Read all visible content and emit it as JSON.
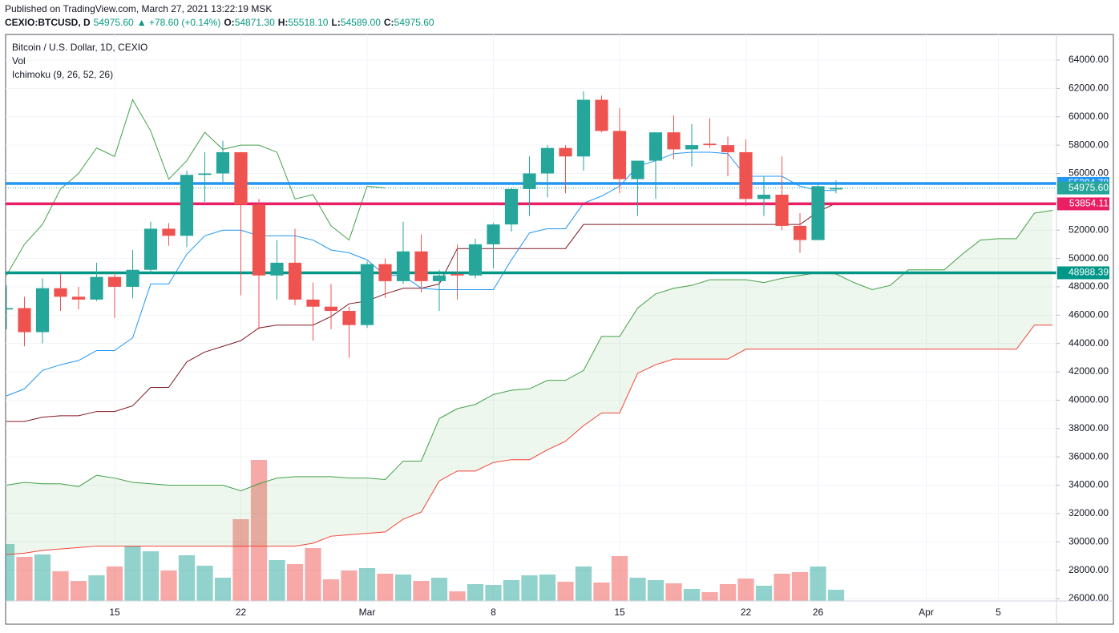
{
  "header": {
    "published": "Published on TradingView.com, March 27, 2021 13:22:19 MSK",
    "symbol": "CEXIO:BTCUSD, D",
    "last": "54975.60",
    "change": "▲ +78.60 (+0.14%)",
    "ohlc": [
      {
        "label": "O:",
        "value": "54871.30"
      },
      {
        "label": "H:",
        "value": "55518.10"
      },
      {
        "label": "L:",
        "value": "54589.00"
      },
      {
        "label": "C:",
        "value": "54975.60"
      }
    ]
  },
  "chart_data": {
    "type": "candlestick",
    "title": "Bitcoin / U.S. Dollar, 1D, CEXIO",
    "categories": [
      null,
      null,
      null,
      null,
      null,
      null,
      "15",
      null,
      null,
      null,
      null,
      null,
      null,
      "22",
      null,
      null,
      null,
      null,
      null,
      null,
      "Mar",
      null,
      null,
      null,
      null,
      null,
      null,
      "8",
      null,
      null,
      null,
      null,
      null,
      null,
      "15",
      null,
      null,
      null,
      null,
      null,
      null,
      "22",
      null,
      null,
      null,
      "26",
      null,
      null,
      null,
      null,
      null,
      "Apr",
      null,
      null,
      null,
      "5",
      null,
      null,
      null
    ],
    "open": [
      46400,
      46500,
      44800,
      47900,
      47300,
      47100,
      48700,
      48000,
      49200,
      52100,
      51600,
      55900,
      56000,
      57500,
      53800,
      48800,
      49700,
      47100,
      46600,
      46300,
      45300,
      49600,
      48400,
      50500,
      48400,
      48900,
      48800,
      51000,
      52400,
      54900,
      56000,
      57800,
      57200,
      61200,
      59000,
      55600,
      56900,
      58900,
      57700,
      58100,
      58000,
      57500,
      54200,
      54500,
      52300,
      51300,
      54871.3,
      null,
      null,
      null,
      null,
      null,
      null,
      null,
      null,
      null,
      null,
      null,
      null
    ],
    "high": [
      48100,
      47300,
      48600,
      48900,
      48000,
      49700,
      49000,
      50600,
      52600,
      52500,
      56200,
      57500,
      58300,
      57500,
      54200,
      51300,
      52100,
      48300,
      48200,
      46600,
      49800,
      50000,
      52600,
      51700,
      49200,
      51000,
      51400,
      52500,
      55000,
      57200,
      58000,
      58000,
      61800,
      61500,
      60600,
      56900,
      58900,
      60100,
      59500,
      59900,
      58600,
      58400,
      55800,
      57200,
      53200,
      55200,
      55518.1,
      null,
      null,
      null,
      null,
      null,
      null,
      null,
      null,
      null,
      null,
      null,
      null
    ],
    "low": [
      45000,
      43800,
      44000,
      46300,
      46400,
      47000,
      45800,
      47200,
      48900,
      50900,
      50800,
      54000,
      55400,
      47400,
      45000,
      47100,
      46700,
      44200,
      45000,
      43000,
      45100,
      47200,
      48200,
      47600,
      46300,
      47100,
      48600,
      49300,
      51900,
      53000,
      54300,
      54600,
      56200,
      58900,
      54600,
      53000,
      54200,
      57000,
      56500,
      57800,
      55800,
      53700,
      53000,
      52000,
      50400,
      51300,
      54589,
      null,
      null,
      null,
      null,
      null,
      null,
      null,
      null,
      null,
      null,
      null,
      null
    ],
    "close": [
      46500,
      44800,
      47900,
      47300,
      47100,
      48700,
      48000,
      49200,
      52100,
      51600,
      55900,
      56000,
      57500,
      53800,
      48800,
      49700,
      47100,
      46600,
      46300,
      45300,
      49600,
      48400,
      50500,
      48400,
      48800,
      48800,
      51000,
      52400,
      54900,
      56000,
      57800,
      57200,
      61200,
      59000,
      55600,
      56900,
      58900,
      57700,
      58000,
      58000,
      57500,
      54200,
      54500,
      52300,
      51300,
      55100,
      54975.6,
      null,
      null,
      null,
      null,
      null,
      null,
      null,
      null,
      null,
      null,
      null,
      null
    ],
    "up_color": "#26a69a",
    "down_color": "#ef5350",
    "volume": {
      "title": "Vol",
      "values": [
        710,
        550,
        580,
        370,
        250,
        320,
        430,
        690,
        620,
        380,
        570,
        440,
        290,
        1020,
        1760,
        510,
        460,
        660,
        270,
        380,
        410,
        340,
        330,
        250,
        290,
        120,
        210,
        200,
        260,
        320,
        330,
        240,
        430,
        230,
        560,
        290,
        260,
        220,
        150,
        110,
        210,
        280,
        190,
        340,
        360,
        430,
        140,
        null,
        null,
        null,
        null,
        null,
        null,
        null,
        null,
        null,
        null,
        null,
        null
      ]
    },
    "ichimoku": {
      "title": "Ichimoku (9, 26, 52, 26)",
      "cloud_color": "#4caf50",
      "conversion": {
        "color": "#2196f3",
        "values": [
          40300,
          40800,
          42100,
          42500,
          42800,
          43500,
          43500,
          44400,
          48200,
          48200,
          50300,
          51600,
          52000,
          52000,
          51600,
          51600,
          51600,
          51300,
          50600,
          50400,
          49900,
          48800,
          48800,
          47900,
          47800,
          47800,
          47800,
          47800,
          49900,
          51800,
          52100,
          52100,
          53900,
          54400,
          55100,
          56500,
          56900,
          57400,
          57500,
          57500,
          57400,
          55800,
          55800,
          55800,
          55100,
          54800,
          54800,
          null,
          null,
          null,
          null,
          null,
          null,
          null,
          null,
          null,
          null,
          null,
          null
        ]
      },
      "base": {
        "color": "#801922",
        "values": [
          38500,
          38500,
          38800,
          38900,
          38900,
          39200,
          39200,
          39600,
          40900,
          40900,
          42700,
          43400,
          43800,
          44200,
          45100,
          45300,
          45300,
          45300,
          45900,
          46800,
          47000,
          47500,
          47900,
          47900,
          48200,
          50700,
          50700,
          50700,
          50700,
          50700,
          50700,
          50700,
          52400,
          52400,
          52400,
          52400,
          52400,
          52400,
          52400,
          52400,
          52400,
          52400,
          52400,
          52400,
          52400,
          53300,
          53900,
          null,
          null,
          null,
          null,
          null,
          null,
          null,
          null,
          null,
          null,
          null,
          null
        ]
      },
      "lagging": {
        "color": "#43a047",
        "values": [
          48800,
          51000,
          52400,
          54900,
          56000,
          57800,
          57200,
          61200,
          59000,
          55600,
          56900,
          58900,
          57700,
          58000,
          58000,
          57500,
          54200,
          54500,
          52300,
          51300,
          55100,
          54975.6,
          null,
          null,
          null,
          null,
          null,
          null,
          null,
          null,
          null,
          null,
          null,
          null,
          null,
          null,
          null,
          null,
          null,
          null,
          null,
          null,
          null,
          null,
          null,
          null,
          null,
          null,
          null,
          null,
          null,
          null,
          null,
          null,
          null,
          null,
          null,
          null,
          null
        ]
      },
      "span_a": {
        "color": "#43a047",
        "values": [
          34000,
          34200,
          34100,
          34100,
          33900,
          34700,
          34500,
          34200,
          34100,
          34000,
          34000,
          34000,
          34000,
          33600,
          34100,
          34500,
          34600,
          34600,
          34600,
          34500,
          34500,
          34400,
          35700,
          35700,
          38700,
          39400,
          39700,
          40400,
          40700,
          40800,
          41400,
          41400,
          42100,
          44500,
          44500,
          46500,
          47500,
          47900,
          48100,
          48500,
          48500,
          48500,
          48300,
          48600,
          48800,
          49000,
          48900,
          48300,
          47800,
          48100,
          49200,
          49200,
          49200,
          50300,
          51300,
          51400,
          51400,
          53200,
          53400
        ]
      },
      "span_b": {
        "color": "#f44336",
        "values": [
          29100,
          29200,
          29400,
          29500,
          29600,
          29700,
          29700,
          29700,
          29700,
          29700,
          29700,
          29700,
          29700,
          29700,
          29700,
          29700,
          29700,
          29900,
          30400,
          30500,
          30600,
          30700,
          31600,
          32100,
          34300,
          35000,
          35000,
          35600,
          35800,
          35800,
          36500,
          37100,
          38200,
          39100,
          39100,
          41900,
          42500,
          42900,
          42900,
          42900,
          42900,
          43600,
          43600,
          43600,
          43600,
          43600,
          43600,
          43600,
          43600,
          43600,
          43600,
          43600,
          43600,
          43600,
          43600,
          43600,
          43600,
          45300,
          45300
        ]
      }
    },
    "hlines": [
      {
        "value": 55294.78,
        "color": "#2196f3",
        "style": "solid"
      },
      {
        "value": 53854.11,
        "color": "#e91e63",
        "style": "solid"
      },
      {
        "value": 48988.39,
        "color": "#009688",
        "style": "solid"
      },
      {
        "value": 54975.6,
        "label": "54975.60",
        "color": "#26a69a",
        "style": "dotted"
      }
    ],
    "ylim": [
      25830,
      65810
    ],
    "yticks": [
      {
        "value": 26000,
        "label": "26000.00"
      },
      {
        "value": 28000,
        "label": "28000.00"
      },
      {
        "value": 30000,
        "label": "30000.00"
      },
      {
        "value": 32000,
        "label": "32000.00"
      },
      {
        "value": 34000,
        "label": "34000.00"
      },
      {
        "value": 36000,
        "label": "36000.00"
      },
      {
        "value": 38000,
        "label": "38000.00"
      },
      {
        "value": 40000,
        "label": "40000.00"
      },
      {
        "value": 42000,
        "label": "42000.00"
      },
      {
        "value": 44000,
        "label": "44000.00"
      },
      {
        "value": 46000,
        "label": "46000.00"
      },
      {
        "value": 48000,
        "label": "48000.00"
      },
      {
        "value": 50000,
        "label": "50000.00"
      },
      {
        "value": 52000,
        "label": "52000.00"
      },
      {
        "value": 54000,
        "label": "54000.00"
      },
      {
        "value": 56000,
        "label": "56000.00"
      },
      {
        "value": 58000,
        "label": "58000.00"
      },
      {
        "value": 60000,
        "label": "60000.00"
      },
      {
        "value": 62000,
        "label": "62000.00"
      },
      {
        "value": 64000,
        "label": "64000.00"
      }
    ],
    "grid": true
  }
}
